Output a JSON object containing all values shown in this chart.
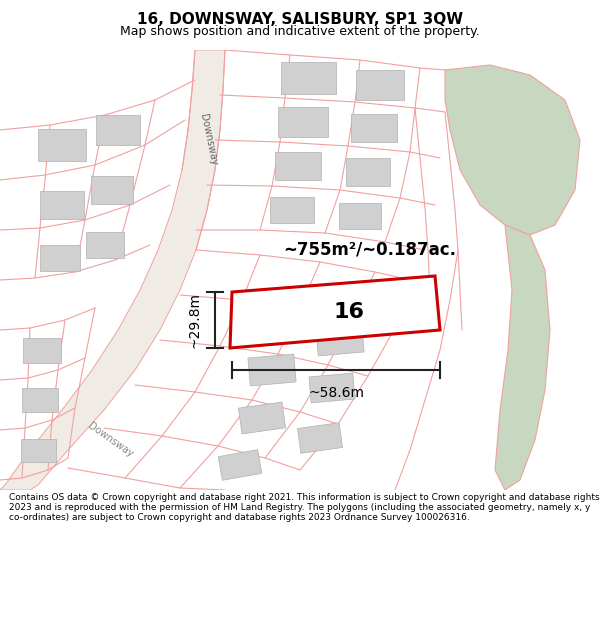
{
  "title": "16, DOWNSWAY, SALISBURY, SP1 3QW",
  "subtitle": "Map shows position and indicative extent of the property.",
  "footer": "Contains OS data © Crown copyright and database right 2021. This information is subject to Crown copyright and database rights 2023 and is reproduced with the permission of HM Land Registry. The polygons (including the associated geometry, namely x, y co-ordinates) are subject to Crown copyright and database rights 2023 Ordnance Survey 100026316.",
  "map_bg": "#ffffff",
  "green_area_color": "#c8d8c0",
  "plot_outline_color": "#cc0000",
  "street_line_color": "#f0a0a0",
  "area_text": "~755m²/~0.187ac.",
  "plot_label": "16",
  "width_label": "~58.6m",
  "height_label": "~29.8m",
  "figsize": [
    6.0,
    6.25
  ],
  "dpi": 100
}
